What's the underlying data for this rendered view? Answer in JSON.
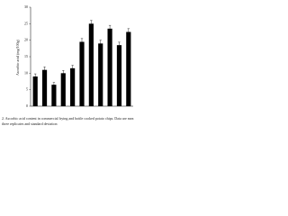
{
  "chart_data": {
    "type": "bar",
    "y_label": "Ascorbic acid (mg/100g)",
    "caption_line1": "2. Ascorbic acid content in commercial frying and bottle cooked potato chips. Data are mea",
    "caption_line2": "three replicates and standard deviation",
    "categories": [
      null,
      null,
      null,
      null,
      null,
      null,
      null,
      null,
      null,
      null,
      null
    ],
    "values": [
      9,
      11,
      6.5,
      10,
      11.5,
      19.5,
      25,
      19,
      23.5,
      18.5,
      22.5
    ],
    "errors": [
      0.8,
      0.9,
      0.7,
      0.8,
      0.9,
      1.0,
      1.0,
      1.0,
      1.0,
      0.9,
      1.0
    ],
    "color": "#000000",
    "ylim": [
      0,
      30
    ],
    "yticks": [
      0,
      5,
      10,
      15,
      20,
      25,
      30
    ],
    "grid": false
  }
}
